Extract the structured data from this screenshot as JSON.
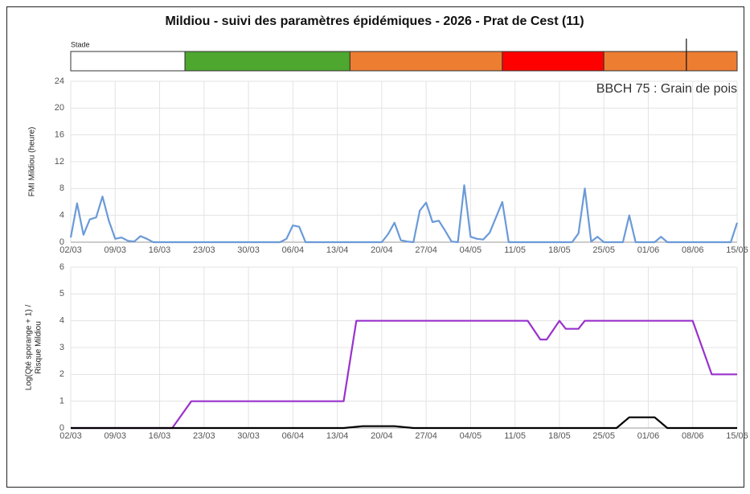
{
  "chart_data": [
    {
      "type": "timeline",
      "title": "Mildiou - suivi des paramètres épidémiques - 2026 - Prat de Cest (11)",
      "label": "Stade",
      "xlim": [
        "02/03",
        "15/06"
      ],
      "segments": [
        {
          "start": "02/03",
          "end": "20/03",
          "color": "#ffffff"
        },
        {
          "start": "20/03",
          "end": "15/04",
          "color": "#4ea72e"
        },
        {
          "start": "15/04",
          "end": "09/05",
          "color": "#ed7d31"
        },
        {
          "start": "09/05",
          "end": "25/05",
          "color": "#ff0000"
        },
        {
          "start": "25/05",
          "end": "15/06",
          "color": "#ed7d31"
        }
      ],
      "marker": "07/06"
    },
    {
      "type": "line",
      "ylabel": [
        "FMI Mildiou (heure)"
      ],
      "annotation": "BBCH 75 : Grain de pois",
      "xlim": [
        "02/03",
        "15/06"
      ],
      "ylim": [
        0,
        24
      ],
      "yticks": [
        0,
        4,
        8,
        12,
        16,
        20,
        24
      ],
      "xticks": [
        "02/03",
        "09/03",
        "16/03",
        "23/03",
        "30/03",
        "06/04",
        "13/04",
        "20/04",
        "27/04",
        "04/05",
        "11/05",
        "18/05",
        "25/05",
        "01/06",
        "08/06",
        "15/06"
      ],
      "grid": true,
      "x": [
        "02/03",
        "03/03",
        "04/03",
        "05/03",
        "06/03",
        "07/03",
        "08/03",
        "09/03",
        "10/03",
        "11/03",
        "12/03",
        "13/03",
        "14/03",
        "15/03",
        "04/04",
        "05/04",
        "06/04",
        "07/04",
        "08/04",
        "20/04",
        "21/04",
        "22/04",
        "23/04",
        "24/04",
        "25/04",
        "26/04",
        "27/04",
        "28/04",
        "29/04",
        "30/04",
        "01/05",
        "02/05",
        "03/05",
        "04/05",
        "05/05",
        "06/05",
        "07/05",
        "08/05",
        "09/05",
        "10/05",
        "20/05",
        "21/05",
        "22/05",
        "23/05",
        "24/05",
        "25/05",
        "28/05",
        "29/05",
        "30/05",
        "02/06",
        "03/06",
        "04/06",
        "14/06",
        "15/06"
      ],
      "series": [
        {
          "color": "#6a9ad8",
          "values": [
            0.7,
            5.8,
            1.1,
            3.4,
            3.7,
            6.8,
            3.2,
            0.5,
            0.7,
            0.2,
            0.1,
            0.9,
            0.5,
            0,
            0,
            0.5,
            2.5,
            2.3,
            0,
            0,
            1.2,
            2.9,
            0.3,
            0.1,
            0,
            4.7,
            5.9,
            3.0,
            3.2,
            1.7,
            0.1,
            0,
            8.5,
            0.8,
            0.5,
            0.4,
            1.4,
            3.7,
            6.0,
            0,
            0,
            1.3,
            8.0,
            0.1,
            0.8,
            0,
            0,
            4.0,
            0,
            0,
            0.8,
            0,
            0,
            2.9
          ]
        }
      ]
    },
    {
      "type": "line",
      "ylabel": [
        "Log(Qté sporange + 1) /",
        "Risque Mildiou"
      ],
      "xlim": [
        "02/03",
        "15/06"
      ],
      "ylim": [
        0,
        6
      ],
      "yticks": [
        0,
        1,
        2,
        3,
        4,
        5,
        6
      ],
      "xticks": [
        "02/03",
        "09/03",
        "16/03",
        "23/03",
        "30/03",
        "06/04",
        "13/04",
        "20/04",
        "27/04",
        "04/05",
        "11/05",
        "18/05",
        "25/05",
        "01/06",
        "08/06",
        "15/06"
      ],
      "grid": true,
      "series": [
        {
          "color": "#9932cc",
          "x": [
            "02/03",
            "18/03",
            "21/03",
            "14/04",
            "16/04",
            "13/05",
            "15/05",
            "16/05",
            "18/05",
            "19/05",
            "21/05",
            "22/05",
            "08/06",
            "11/06",
            "15/06"
          ],
          "values": [
            0,
            0,
            1,
            1,
            4,
            4,
            3.3,
            3.3,
            4,
            3.7,
            3.7,
            4,
            4,
            2,
            2
          ]
        },
        {
          "color": "#000000",
          "x": [
            "02/03",
            "14/04",
            "17/04",
            "22/04",
            "25/04",
            "27/05",
            "29/05",
            "02/06",
            "04/06",
            "15/06"
          ],
          "values": [
            0,
            0,
            0.07,
            0.07,
            0,
            0,
            0.4,
            0.4,
            0,
            0
          ]
        }
      ]
    }
  ]
}
